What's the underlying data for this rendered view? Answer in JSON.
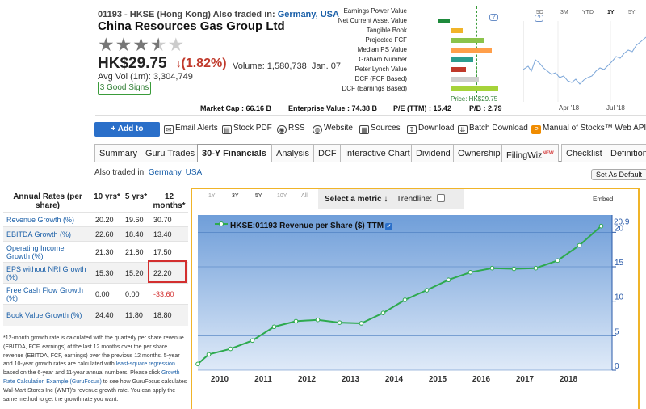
{
  "header": {
    "ticker": "01193 - HKSE (Hong Kong)",
    "also_traded_label": "Also traded in:",
    "also_traded_places": "Germany, USA",
    "company": "China Resources Gas Group Ltd",
    "rating_stars": 3.5,
    "price": "HK$29.75",
    "change": "(1.82%)",
    "volume": "Volume: 1,580,738",
    "date": "Jan. 07",
    "avg_vol": "Avg Vol (1m): 3,304,749",
    "signs_badge": "3 Good Signs",
    "colors": {
      "link": "#1a5fa8",
      "negative": "#c0392b",
      "positive": "#2e7d32"
    }
  },
  "valuation": {
    "rows": [
      {
        "label": "Earnings Power Value",
        "color": "",
        "start": 0,
        "end": 0
      },
      {
        "label": "Net Current Asset Value",
        "color": "#1e8a3c",
        "start": 0.3,
        "end": 0.44
      },
      {
        "label": "Tangible Book",
        "color": "#f0b429",
        "start": 0.45,
        "end": 0.58
      },
      {
        "label": "Projected FCF",
        "color": "#8bc34a",
        "start": 0.45,
        "end": 0.82
      },
      {
        "label": "Median PS Value",
        "color": "#ff9f4a",
        "start": 0.45,
        "end": 0.9
      },
      {
        "label": "Graham Number",
        "color": "#2a9d8f",
        "start": 0.45,
        "end": 0.7
      },
      {
        "label": "Peter Lynch Value",
        "color": "#c0392b",
        "start": 0.45,
        "end": 0.62
      },
      {
        "label": "DCF (FCF Based)",
        "color": "#cfcfcf",
        "start": 0.45,
        "end": 0.76
      },
      {
        "label": "DCF (Earnings Based)",
        "color": "#a6d33a",
        "start": 0.45,
        "end": 0.97
      }
    ],
    "price_label": "Price: HK$29.75",
    "help": "?"
  },
  "mini_chart": {
    "tabs": [
      "5D",
      "3M",
      "YTD",
      "1Y",
      "5Y"
    ],
    "active_tab": "1Y",
    "x_labels": [
      "Apr '18",
      "Jul '18"
    ],
    "help": "?"
  },
  "stats": {
    "market_cap": "Market Cap : 66.16 B",
    "enterprise_value": "Enterprise Value : 74.38 B",
    "pe": "P/E (TTM) : 15.42",
    "pb": "P/B : 2.79"
  },
  "toolbar": {
    "add_portfolio": "+ Add to Portfolio",
    "items": [
      "Email Alerts",
      "Stock PDF",
      "RSS",
      "Website",
      "Sources",
      "Download",
      "Batch Download",
      "Manual of Stocks™ Web API"
    ],
    "icons": [
      "envelope-icon",
      "pdf-icon",
      "rss-icon",
      "globe-icon",
      "sources-icon",
      "download-icon",
      "batch-download-icon",
      "api-icon"
    ]
  },
  "tabs": {
    "items": [
      "Summary",
      "Guru Trades",
      "30-Y Financials",
      "Analysis",
      "DCF",
      "Interactive Chart",
      "Dividend",
      "Ownership",
      "FilingWiz",
      "Checklist",
      "Definitions"
    ],
    "active": "30-Y Financials",
    "new_badge": "NEW"
  },
  "sub_header": {
    "also_traded_label": "Also traded in:",
    "also_traded_places": "Germany, USA",
    "set_default": "Set As Default"
  },
  "growth_table": {
    "headers": [
      "Annual Rates (per share)",
      "10 yrs*",
      "5 yrs*",
      "12 months*"
    ],
    "rows": [
      {
        "name": "Revenue Growth (%)",
        "y10": "20.20",
        "y5": "19.60",
        "m12": "30.70"
      },
      {
        "name": "EBITDA Growth (%)",
        "y10": "22.60",
        "y5": "18.40",
        "m12": "13.40"
      },
      {
        "name": "Operating Income Growth (%)",
        "y10": "21.30",
        "y5": "21.80",
        "m12": "17.50"
      },
      {
        "name": "EPS without NRI Growth (%)",
        "y10": "15.30",
        "y5": "15.20",
        "m12": "22.20"
      },
      {
        "name": "Free Cash Flow Growth (%)",
        "y10": "0.00",
        "y5": "0.00",
        "m12": "-33.60"
      },
      {
        "name": "Book Value Growth (%)",
        "y10": "24.40",
        "y5": "11.80",
        "m12": "18.80"
      }
    ],
    "notes_a": "*12-month growth rate is calculated with the quarterly per share revenue (EBITDA, FCF, earnings) of the last 12 months over the per share revenue (EBITDA, FCF, earnings) over the previous 12 months. 5-year and 10-year growth rates are calculated with ",
    "notes_link1": "least-square regression",
    "notes_b": " based on the 6-year and 11-year annual numbers. Please click ",
    "notes_link2": "Growth Rate Calculation Example (GuruFocus)",
    "notes_c": " to see how GuruFocus calculates Wal-Mart Stores Inc (WMT)'s revenue growth rate. You can apply the same method to get the growth rate you want."
  },
  "chart_panel": {
    "ranges": [
      "1Y",
      "3Y",
      "5Y",
      "10Y",
      "All"
    ],
    "active_ranges": [
      "3Y",
      "5Y"
    ],
    "select_metric": "Select a metric ↓",
    "trendline": "Trendline:",
    "embed": "Embed",
    "legend": "HKSE:01193 Revenue per Share ($) TTM",
    "last_value_label": "20.9"
  },
  "chart_data": {
    "type": "line",
    "title": "HKSE:01193 Revenue per Share ($) TTM",
    "series": [
      {
        "name": "HKSE:01193 Revenue per Share ($) TTM",
        "color": "#2eaa4f",
        "x": [
          2009.5,
          2009.75,
          2010.25,
          2010.75,
          2011.25,
          2011.75,
          2012.25,
          2012.75,
          2013.25,
          2013.75,
          2014.25,
          2014.75,
          2015.25,
          2015.75,
          2016.25,
          2016.75,
          2017.25,
          2017.75,
          2018.25,
          2018.75
        ],
        "values": [
          0.9,
          2.3,
          3.1,
          4.3,
          6.3,
          7.1,
          7.3,
          6.9,
          6.8,
          8.3,
          10.2,
          11.6,
          13.1,
          14.2,
          14.8,
          14.7,
          14.8,
          15.9,
          18.1,
          20.9
        ]
      }
    ],
    "xlabel": "",
    "ylabel": "",
    "x_ticks": [
      "2010",
      "2011",
      "2012",
      "2013",
      "2014",
      "2015",
      "2016",
      "2017",
      "2018"
    ],
    "y_ticks": [
      "0",
      "5",
      "10",
      "15",
      "20"
    ],
    "xlim": [
      2009.5,
      2019.0
    ],
    "ylim": [
      0,
      22.5
    ],
    "grid": true,
    "legend_position": "top-left"
  }
}
